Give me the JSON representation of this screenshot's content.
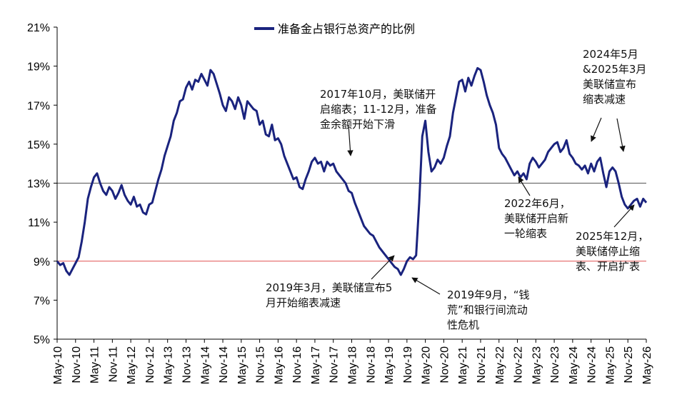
{
  "chart_data": {
    "type": "line",
    "title": "",
    "xlabel": "",
    "ylabel": "",
    "ylim": [
      5,
      21
    ],
    "y_ticks": [
      "5%",
      "7%",
      "9%",
      "11%",
      "13%",
      "15%",
      "17%",
      "19%",
      "21%"
    ],
    "x_ticks": [
      "May-10",
      "Nov-10",
      "May-11",
      "Nov-11",
      "May-12",
      "Nov-12",
      "May-13",
      "Nov-13",
      "May-14",
      "Nov-14",
      "May-15",
      "Nov-15",
      "May-16",
      "Nov-16",
      "May-17",
      "Nov-17",
      "May-18",
      "Nov-18",
      "May-19",
      "Nov-19",
      "May-20",
      "Nov-20",
      "May-21",
      "Nov-21",
      "May-22",
      "Nov-22",
      "May-23",
      "Nov-23",
      "May-24",
      "Nov-24",
      "May-25",
      "Nov-25",
      "May-26"
    ],
    "legend_position": "top-center",
    "reference_lines": [
      {
        "y": 13,
        "color": "#555555"
      },
      {
        "y": 9,
        "color": "#e05050"
      }
    ],
    "series": [
      {
        "name": "准备金占银行总资产的比例",
        "color": "#1a237e",
        "points": [
          [
            "May-10",
            9.0
          ],
          [
            "Jun-10",
            8.8
          ],
          [
            "Jul-10",
            8.9
          ],
          [
            "Aug-10",
            8.5
          ],
          [
            "Sep-10",
            8.3
          ],
          [
            "Oct-10",
            8.6
          ],
          [
            "Nov-10",
            8.9
          ],
          [
            "Dec-10",
            9.2
          ],
          [
            "Jan-11",
            10.0
          ],
          [
            "Feb-11",
            11.0
          ],
          [
            "Mar-11",
            12.2
          ],
          [
            "Apr-11",
            12.8
          ],
          [
            "May-11",
            13.3
          ],
          [
            "Jun-11",
            13.5
          ],
          [
            "Jul-11",
            13.0
          ],
          [
            "Aug-11",
            12.6
          ],
          [
            "Sep-11",
            12.4
          ],
          [
            "Oct-11",
            12.8
          ],
          [
            "Nov-11",
            12.6
          ],
          [
            "Dec-11",
            12.2
          ],
          [
            "Jan-12",
            12.5
          ],
          [
            "Feb-12",
            12.9
          ],
          [
            "Mar-12",
            12.4
          ],
          [
            "Apr-12",
            12.1
          ],
          [
            "May-12",
            11.9
          ],
          [
            "Jun-12",
            12.3
          ],
          [
            "Jul-12",
            11.8
          ],
          [
            "Aug-12",
            11.9
          ],
          [
            "Sep-12",
            11.5
          ],
          [
            "Oct-12",
            11.4
          ],
          [
            "Nov-12",
            11.9
          ],
          [
            "Dec-12",
            12.0
          ],
          [
            "Jan-13",
            12.6
          ],
          [
            "Feb-13",
            13.2
          ],
          [
            "Mar-13",
            13.7
          ],
          [
            "Apr-13",
            14.4
          ],
          [
            "May-13",
            14.9
          ],
          [
            "Jun-13",
            15.4
          ],
          [
            "Jul-13",
            16.2
          ],
          [
            "Aug-13",
            16.6
          ],
          [
            "Sep-13",
            17.2
          ],
          [
            "Oct-13",
            17.3
          ],
          [
            "Nov-13",
            17.9
          ],
          [
            "Dec-13",
            18.2
          ],
          [
            "Jan-14",
            17.8
          ],
          [
            "Feb-14",
            18.3
          ],
          [
            "Mar-14",
            18.2
          ],
          [
            "Apr-14",
            18.6
          ],
          [
            "May-14",
            18.3
          ],
          [
            "Jun-14",
            18.0
          ],
          [
            "Jul-14",
            18.8
          ],
          [
            "Aug-14",
            18.6
          ],
          [
            "Sep-14",
            18.1
          ],
          [
            "Oct-14",
            17.6
          ],
          [
            "Nov-14",
            17.0
          ],
          [
            "Dec-14",
            16.7
          ],
          [
            "Jan-15",
            17.4
          ],
          [
            "Feb-15",
            17.2
          ],
          [
            "Mar-15",
            16.8
          ],
          [
            "Apr-15",
            17.4
          ],
          [
            "May-15",
            17.0
          ],
          [
            "Jun-15",
            16.3
          ],
          [
            "Jul-15",
            17.2
          ],
          [
            "Aug-15",
            17.0
          ],
          [
            "Sep-15",
            16.8
          ],
          [
            "Oct-15",
            16.7
          ],
          [
            "Nov-15",
            16.0
          ],
          [
            "Dec-15",
            16.2
          ],
          [
            "Jan-16",
            15.5
          ],
          [
            "Feb-16",
            15.4
          ],
          [
            "Mar-16",
            16.0
          ],
          [
            "Apr-16",
            15.2
          ],
          [
            "May-16",
            15.3
          ],
          [
            "Jun-16",
            15.0
          ],
          [
            "Jul-16",
            14.4
          ],
          [
            "Aug-16",
            14.0
          ],
          [
            "Sep-16",
            13.6
          ],
          [
            "Oct-16",
            13.2
          ],
          [
            "Nov-16",
            13.3
          ],
          [
            "Dec-16",
            12.8
          ],
          [
            "Jan-17",
            12.7
          ],
          [
            "Feb-17",
            13.2
          ],
          [
            "Mar-17",
            13.6
          ],
          [
            "Apr-17",
            14.1
          ],
          [
            "May-17",
            14.3
          ],
          [
            "Jun-17",
            14.0
          ],
          [
            "Jul-17",
            14.1
          ],
          [
            "Aug-17",
            13.6
          ],
          [
            "Sep-17",
            14.1
          ],
          [
            "Oct-17",
            13.9
          ],
          [
            "Nov-17",
            14.0
          ],
          [
            "Dec-17",
            13.6
          ],
          [
            "Jan-18",
            13.4
          ],
          [
            "Feb-18",
            13.2
          ],
          [
            "Mar-18",
            13.0
          ],
          [
            "Apr-18",
            12.6
          ],
          [
            "May-18",
            12.5
          ],
          [
            "Jun-18",
            12.0
          ],
          [
            "Jul-18",
            11.6
          ],
          [
            "Aug-18",
            11.2
          ],
          [
            "Sep-18",
            10.8
          ],
          [
            "Oct-18",
            10.6
          ],
          [
            "Nov-18",
            10.4
          ],
          [
            "Dec-18",
            10.3
          ],
          [
            "Jan-19",
            10.0
          ],
          [
            "Feb-19",
            9.7
          ],
          [
            "Mar-19",
            9.5
          ],
          [
            "Apr-19",
            9.3
          ],
          [
            "May-19",
            9.1
          ],
          [
            "Jun-19",
            8.9
          ],
          [
            "Jul-19",
            8.7
          ],
          [
            "Aug-19",
            8.6
          ],
          [
            "Sep-19",
            8.3
          ],
          [
            "Oct-19",
            8.6
          ],
          [
            "Nov-19",
            9.0
          ],
          [
            "Dec-19",
            9.2
          ],
          [
            "Jan-20",
            9.1
          ],
          [
            "Feb-20",
            9.3
          ],
          [
            "Mar-20",
            12.0
          ],
          [
            "Apr-20",
            15.4
          ],
          [
            "May-20",
            16.2
          ],
          [
            "Jun-20",
            14.6
          ],
          [
            "Jul-20",
            13.6
          ],
          [
            "Aug-20",
            13.8
          ],
          [
            "Sep-20",
            14.2
          ],
          [
            "Oct-20",
            14.0
          ],
          [
            "Nov-20",
            14.3
          ],
          [
            "Dec-20",
            14.9
          ],
          [
            "Jan-21",
            15.4
          ],
          [
            "Feb-21",
            16.6
          ],
          [
            "Mar-21",
            17.4
          ],
          [
            "Apr-21",
            18.2
          ],
          [
            "May-21",
            18.3
          ],
          [
            "Jun-21",
            17.7
          ],
          [
            "Jul-21",
            18.4
          ],
          [
            "Aug-21",
            18.0
          ],
          [
            "Sep-21",
            18.5
          ],
          [
            "Oct-21",
            18.9
          ],
          [
            "Nov-21",
            18.8
          ],
          [
            "Dec-21",
            18.2
          ],
          [
            "Jan-22",
            17.5
          ],
          [
            "Feb-22",
            17.0
          ],
          [
            "Mar-22",
            16.6
          ],
          [
            "Apr-22",
            16.0
          ],
          [
            "May-22",
            14.8
          ],
          [
            "Jun-22",
            14.5
          ],
          [
            "Jul-22",
            14.3
          ],
          [
            "Aug-22",
            14.0
          ],
          [
            "Sep-22",
            13.7
          ],
          [
            "Oct-22",
            13.4
          ],
          [
            "Nov-22",
            13.6
          ],
          [
            "Dec-22",
            13.3
          ],
          [
            "Jan-23",
            13.5
          ],
          [
            "Feb-23",
            13.2
          ],
          [
            "Mar-23",
            14.0
          ],
          [
            "Apr-23",
            14.3
          ],
          [
            "May-23",
            14.1
          ],
          [
            "Jun-23",
            13.8
          ],
          [
            "Jul-23",
            14.0
          ],
          [
            "Aug-23",
            14.2
          ],
          [
            "Sep-23",
            14.6
          ],
          [
            "Oct-23",
            14.8
          ],
          [
            "Nov-23",
            15.0
          ],
          [
            "Dec-23",
            15.1
          ],
          [
            "Jan-24",
            14.6
          ],
          [
            "Feb-24",
            14.8
          ],
          [
            "Mar-24",
            15.2
          ],
          [
            "Apr-24",
            14.5
          ],
          [
            "May-24",
            14.3
          ],
          [
            "Jun-24",
            14.0
          ],
          [
            "Jul-24",
            13.9
          ],
          [
            "Aug-24",
            13.7
          ],
          [
            "Sep-24",
            13.9
          ],
          [
            "Oct-24",
            13.5
          ],
          [
            "Nov-24",
            14.0
          ],
          [
            "Dec-24",
            13.6
          ],
          [
            "Jan-25",
            14.1
          ],
          [
            "Feb-25",
            14.3
          ],
          [
            "Mar-25",
            13.5
          ],
          [
            "Apr-25",
            12.8
          ],
          [
            "May-25",
            13.6
          ],
          [
            "Jun-25",
            13.8
          ],
          [
            "Jul-25",
            13.6
          ],
          [
            "Aug-25",
            13.0
          ],
          [
            "Sep-25",
            12.3
          ],
          [
            "Oct-25",
            11.9
          ],
          [
            "Nov-25",
            11.7
          ],
          [
            "Dec-25",
            11.9
          ],
          [
            "Jan-26",
            12.1
          ],
          [
            "Feb-26",
            12.2
          ],
          [
            "Mar-26",
            11.8
          ],
          [
            "Apr-26",
            12.2
          ],
          [
            "May-26",
            12.0
          ]
        ]
      }
    ],
    "annotations": [
      {
        "id": "a2017",
        "lines": [
          "2017年10月，美联储开",
          "启缩表；11-12月，准备",
          "金余额开始下滑"
        ],
        "target": [
          "Jul-18",
          13.0
        ]
      },
      {
        "id": "a2019mar",
        "lines": [
          "2019年3月，美联储宣布5",
          "月开始缩表减速"
        ],
        "target": [
          "Mar-19",
          9.5
        ]
      },
      {
        "id": "a2019sep",
        "lines": [
          "2019年9月，“钱",
          "荒”和银行间流动",
          "性危机"
        ],
        "target": [
          "Sep-19",
          8.3
        ]
      },
      {
        "id": "a2022",
        "lines": [
          "2022年6月，",
          "美联储开启新",
          "一轮缩表"
        ],
        "target": [
          "Jun-22",
          14.5
        ]
      },
      {
        "id": "a2024",
        "lines": [
          "2024年5月",
          "&2025年3月",
          "美联储宣布",
          "缩表减速"
        ],
        "target": [
          "May-24",
          14.3
        ]
      },
      {
        "id": "a2025",
        "lines": [
          "2025年12月，",
          "美联储停止缩",
          "表、开启扩表"
        ],
        "target": [
          "Dec-25",
          11.9
        ]
      }
    ]
  }
}
